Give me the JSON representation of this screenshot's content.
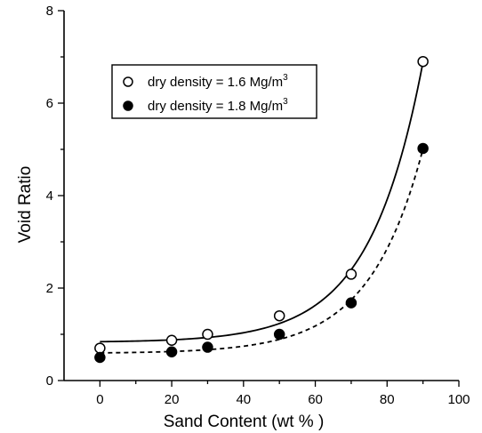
{
  "chart_data": {
    "type": "scatter",
    "xlabel": "Sand Content  (wt % )",
    "ylabel": "Void Ratio",
    "xlim": [
      -10,
      100
    ],
    "ylim": [
      0,
      8
    ],
    "xticks": [
      0,
      20,
      40,
      60,
      80,
      100
    ],
    "yticks": [
      0,
      2,
      4,
      6,
      8
    ],
    "grid": false,
    "legend_position": "upper-left",
    "series": [
      {
        "name": "dry density = 1.6 Mg/m",
        "name_superscript": "3",
        "marker": "open-circle",
        "fit_line": "solid",
        "x": [
          0,
          20,
          30,
          50,
          70,
          90
        ],
        "y": [
          0.7,
          0.87,
          1.0,
          1.4,
          2.3,
          6.9
        ]
      },
      {
        "name": "dry density = 1.8 Mg/m",
        "name_superscript": "3",
        "marker": "filled-circle",
        "fit_line": "dashed",
        "x": [
          0,
          20,
          30,
          50,
          70,
          90
        ],
        "y": [
          0.5,
          0.62,
          0.72,
          1.0,
          1.68,
          5.02
        ]
      }
    ]
  }
}
